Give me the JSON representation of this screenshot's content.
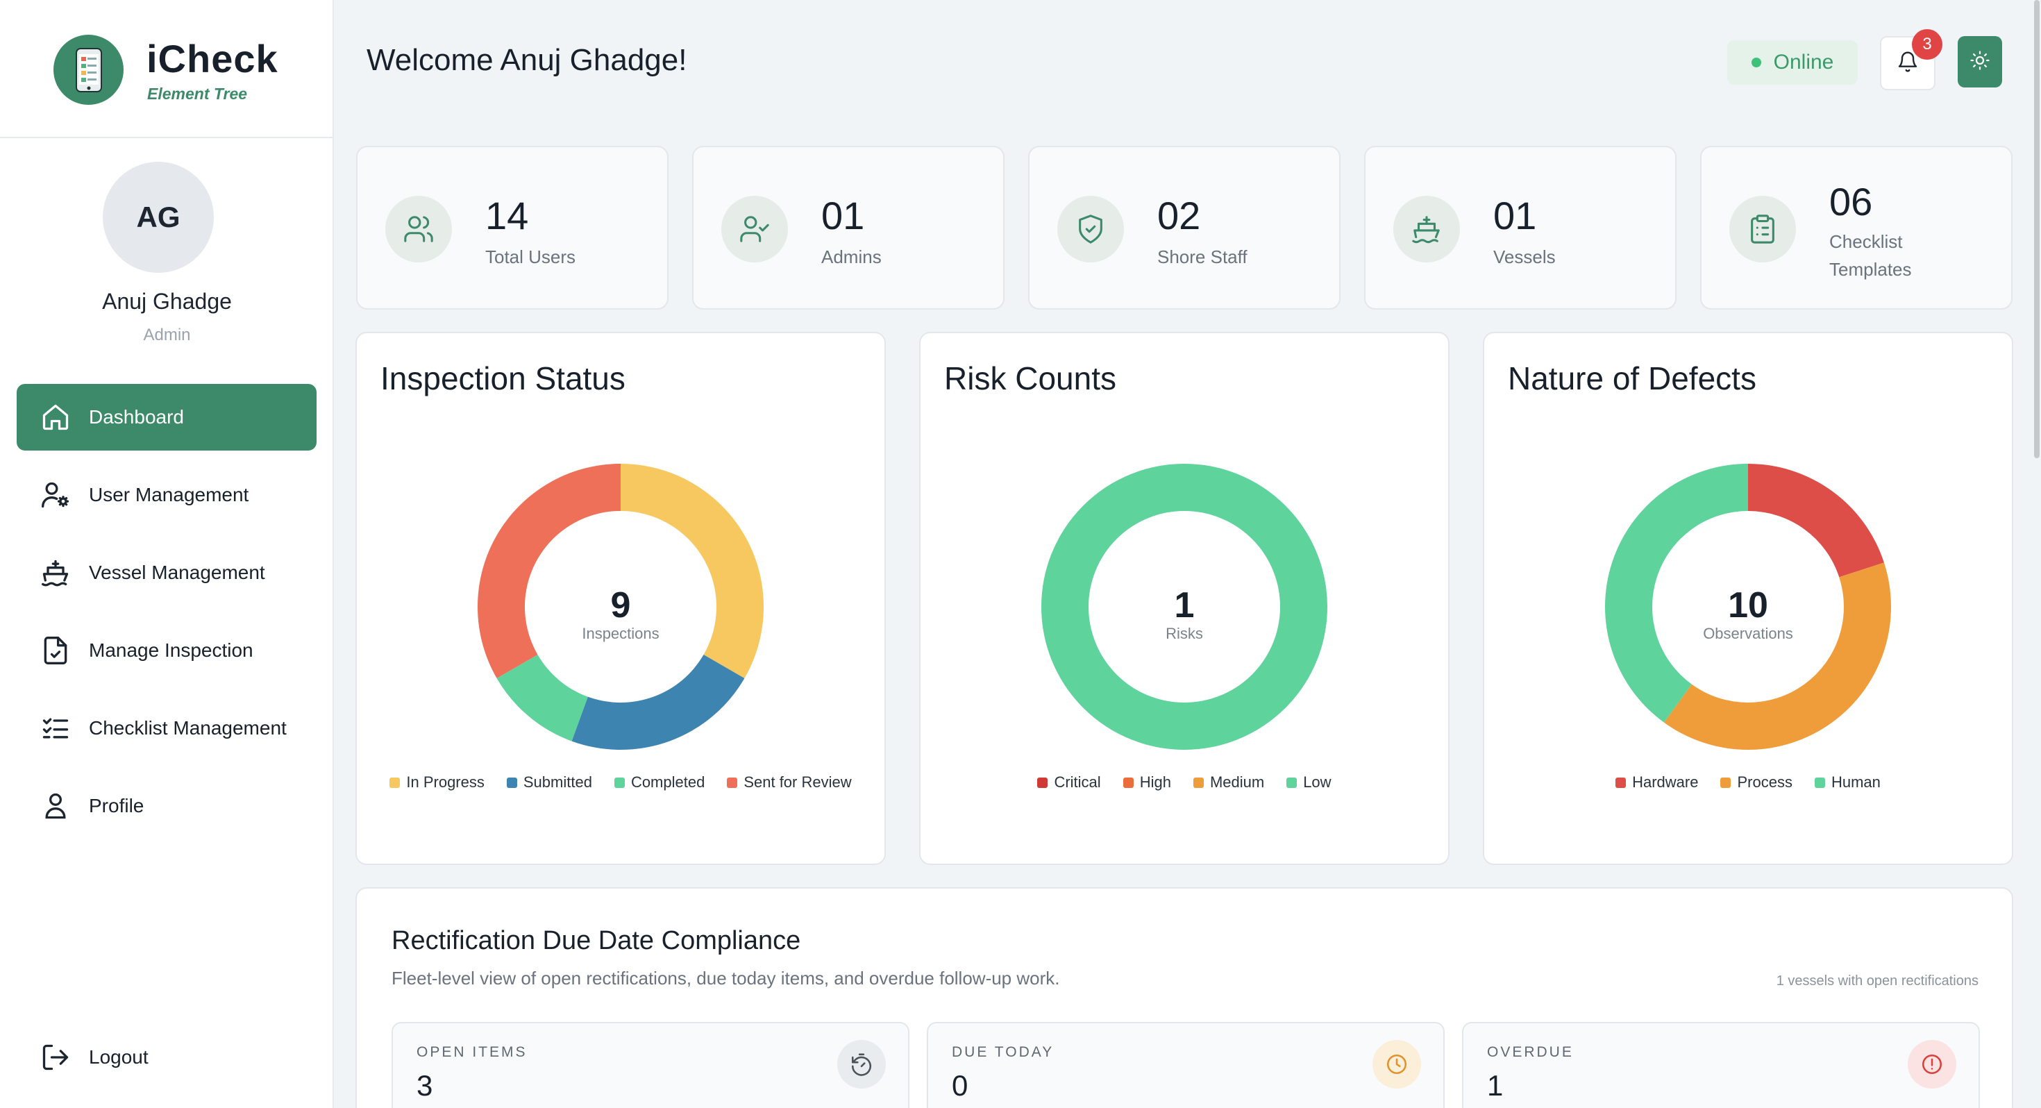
{
  "brand": {
    "name": "iCheck",
    "subtitle": "Element Tree",
    "accent": "#3d8a6a"
  },
  "user": {
    "initials": "AG",
    "name": "Anuj Ghadge",
    "role": "Admin"
  },
  "nav": {
    "items": [
      {
        "label": "Dashboard",
        "icon": "home-icon",
        "active": true
      },
      {
        "label": "User Management",
        "icon": "user-settings-icon"
      },
      {
        "label": "Vessel Management",
        "icon": "ship-icon"
      },
      {
        "label": "Manage Inspection",
        "icon": "file-check-icon"
      },
      {
        "label": "Checklist Management",
        "icon": "list-check-icon"
      },
      {
        "label": "Profile",
        "icon": "user-icon"
      }
    ],
    "logout": "Logout"
  },
  "header": {
    "welcome": "Welcome Anuj Ghadge!",
    "status": "Online",
    "notifications": "3"
  },
  "stats": [
    {
      "value": "14",
      "label": "Total Users",
      "icon": "users-icon"
    },
    {
      "value": "01",
      "label": "Admins",
      "icon": "user-check-icon"
    },
    {
      "value": "02",
      "label": "Shore Staff",
      "icon": "shield-icon"
    },
    {
      "value": "01",
      "label": "Vessels",
      "icon": "ship-icon"
    },
    {
      "value": "06",
      "label": "Checklist Templates",
      "icon": "clipboard-icon"
    }
  ],
  "chart_data": [
    {
      "type": "pie",
      "title": "Inspection Status",
      "center_value": "9",
      "center_label": "Inspections",
      "categories": [
        "In Progress",
        "Submitted",
        "Completed",
        "Sent for Review"
      ],
      "values": [
        3,
        2,
        1,
        3
      ],
      "colors": [
        "#f6c85f",
        "#3d85b0",
        "#5fd39c",
        "#ee7058"
      ],
      "legend": "bottom"
    },
    {
      "type": "pie",
      "title": "Risk Counts",
      "center_value": "1",
      "center_label": "Risks",
      "categories": [
        "Critical",
        "High",
        "Medium",
        "Low"
      ],
      "values": [
        0,
        0,
        0,
        1
      ],
      "colors": [
        "#d03a35",
        "#ec6d3c",
        "#ef9d3a",
        "#5fd39c"
      ],
      "legend": "bottom"
    },
    {
      "type": "pie",
      "title": "Nature of Defects",
      "center_value": "10",
      "center_label": "Observations",
      "categories": [
        "Hardware",
        "Process",
        "Human"
      ],
      "values": [
        2,
        4,
        4
      ],
      "colors": [
        "#dd4e48",
        "#ef9d3a",
        "#5fd39c"
      ],
      "legend": "bottom"
    }
  ],
  "compliance": {
    "title": "Rectification Due Date Compliance",
    "subtitle": "Fleet-level view of open rectifications, due today items, and overdue follow-up work.",
    "note": "1 vessels with open rectifications",
    "cards": [
      {
        "label": "OPEN ITEMS",
        "value": "3",
        "icon": "timer-reset-icon"
      },
      {
        "label": "DUE TODAY",
        "value": "0",
        "icon": "clock-icon"
      },
      {
        "label": "OVERDUE",
        "value": "1",
        "icon": "alert-circle-icon"
      }
    ]
  }
}
